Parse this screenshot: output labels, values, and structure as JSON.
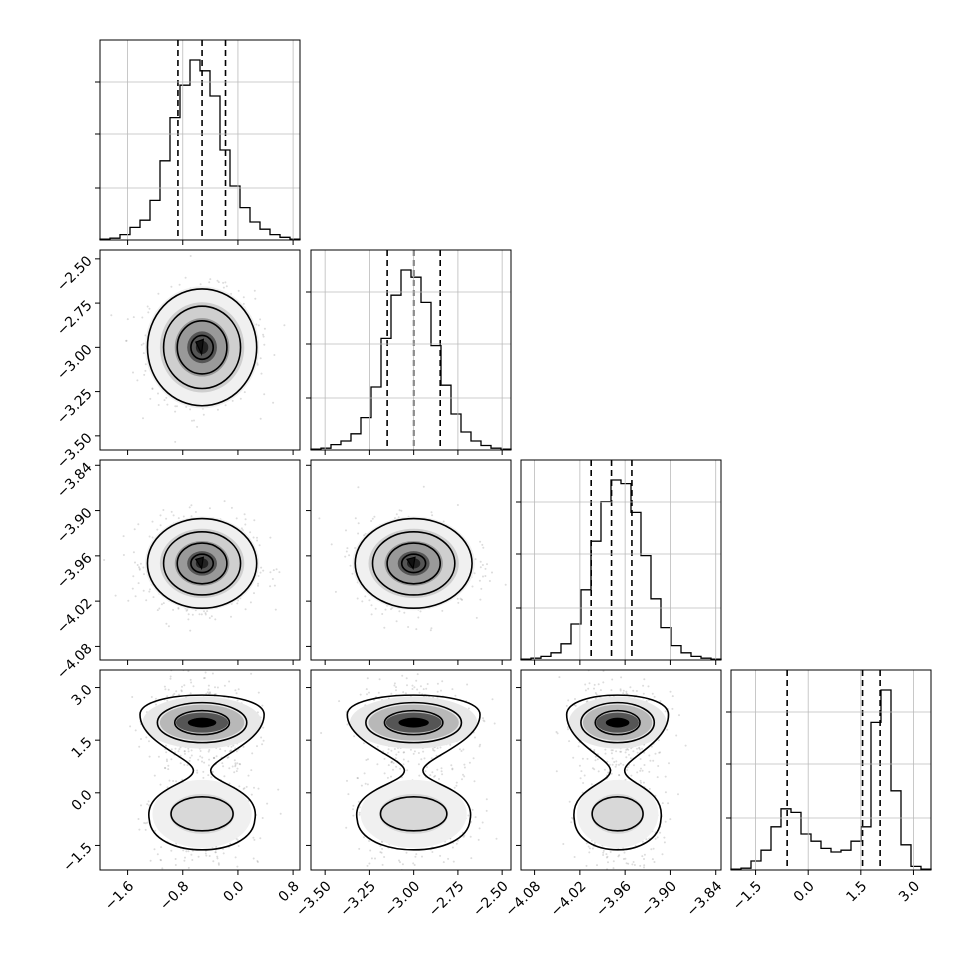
{
  "chart_data": {
    "type": "corner",
    "parameters": [
      {
        "range": [
          -2.0,
          0.9
        ],
        "ticks": [
          -1.6,
          -0.8,
          0.0,
          0.8
        ],
        "tick_labels": [
          "−1.6",
          "−0.8",
          "0.0",
          "0.8"
        ],
        "quantiles": [
          -0.87,
          -0.52,
          -0.18
        ],
        "peak": -0.52,
        "sigma": 0.36
      },
      {
        "range": [
          -3.58,
          -2.45
        ],
        "ticks": [
          -3.5,
          -3.25,
          -3.0,
          -2.75,
          -2.5
        ],
        "tick_labels": [
          "−3.50",
          "−3.25",
          "−3.00",
          "−2.75",
          "−2.50"
        ],
        "quantiles": [
          -3.15,
          -3.0,
          -2.85
        ],
        "peak": -3.0,
        "sigma": 0.15
      },
      {
        "range": [
          -4.098,
          -3.833
        ],
        "ticks": [
          -4.08,
          -4.02,
          -3.96,
          -3.9,
          -3.84
        ],
        "tick_labels": [
          "−4.08",
          "−4.02",
          "−3.96",
          "−3.90",
          "−3.84"
        ],
        "quantiles": [
          -4.005,
          -3.978,
          -3.951
        ],
        "peak": -3.97,
        "sigma": 0.027
      },
      {
        "range": [
          -2.2,
          3.5
        ],
        "ticks": [
          -1.5,
          0.0,
          1.5,
          3.0
        ],
        "tick_labels": [
          "−1.5",
          "0.0",
          "1.5",
          "3.0"
        ],
        "quantiles": [
          -0.6,
          1.55,
          2.05
        ],
        "peak": 2.0,
        "sigma": 0.5
      }
    ],
    "histograms": [
      {
        "bins": 20,
        "counts": [
          0.5,
          1,
          3,
          7,
          11,
          22,
          44,
          68,
          86,
          100,
          94,
          80,
          50,
          30,
          18,
          10,
          6,
          3,
          1.5,
          0.5
        ]
      },
      {
        "bins": 20,
        "counts": [
          0.5,
          1,
          3,
          5,
          9,
          18,
          35,
          62,
          86,
          100,
          96,
          82,
          58,
          36,
          20,
          10,
          5,
          2.5,
          1,
          0.5
        ]
      },
      {
        "bins": 20,
        "counts": [
          0.5,
          1,
          2,
          4,
          9,
          20,
          39,
          66,
          88,
          100,
          98,
          82,
          58,
          34,
          18,
          8,
          4,
          2,
          1,
          0.5
        ]
      },
      {
        "bins": 20,
        "counts": [
          0.5,
          1,
          5,
          11,
          24,
          34,
          32,
          20,
          16,
          12,
          10,
          11,
          16,
          24,
          82,
          100,
          44,
          14,
          2,
          0.5
        ]
      }
    ],
    "grid": true,
    "title": "",
    "labels": []
  }
}
